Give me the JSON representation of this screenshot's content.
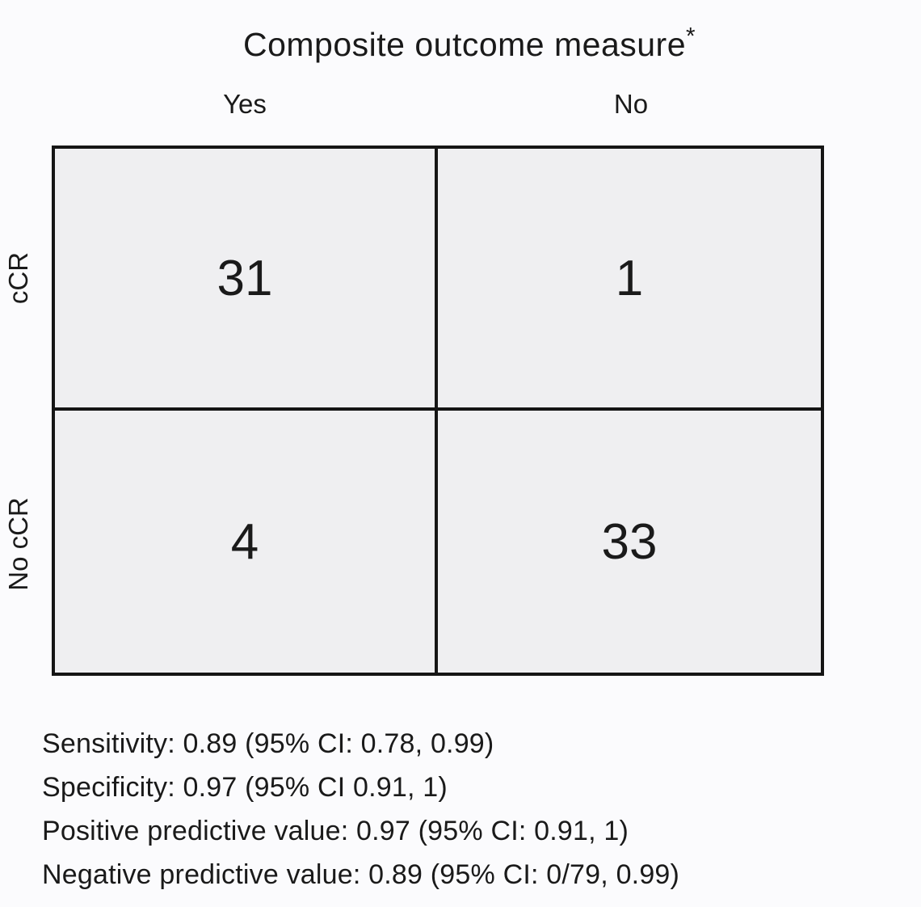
{
  "chart_data": {
    "type": "table",
    "title": "Composite outcome measure",
    "title_footnote_marker": "*",
    "columns": [
      "Yes",
      "No"
    ],
    "rows": [
      "cCR",
      "No cCR"
    ],
    "values": [
      [
        31,
        1
      ],
      [
        4,
        33
      ]
    ],
    "stats": [
      "Sensitivity: 0.89 (95% CI: 0.78, 0.99)",
      "Specificity: 0.97 (95% CI 0.91, 1)",
      "Positive predictive value: 0.97 (95% CI: 0.91, 1)",
      "Negative predictive value: 0.89 (95% CI: 0/79, 0.99)"
    ],
    "layout": {
      "grid": "2x2",
      "column_axis_label": "Composite outcome measure*",
      "row_axis_orientation": "rotated-90"
    }
  },
  "colors": {
    "background": "#fbfbfd",
    "cell_fill": "#efeff1",
    "border": "#151515",
    "text": "#1a1a1a"
  }
}
